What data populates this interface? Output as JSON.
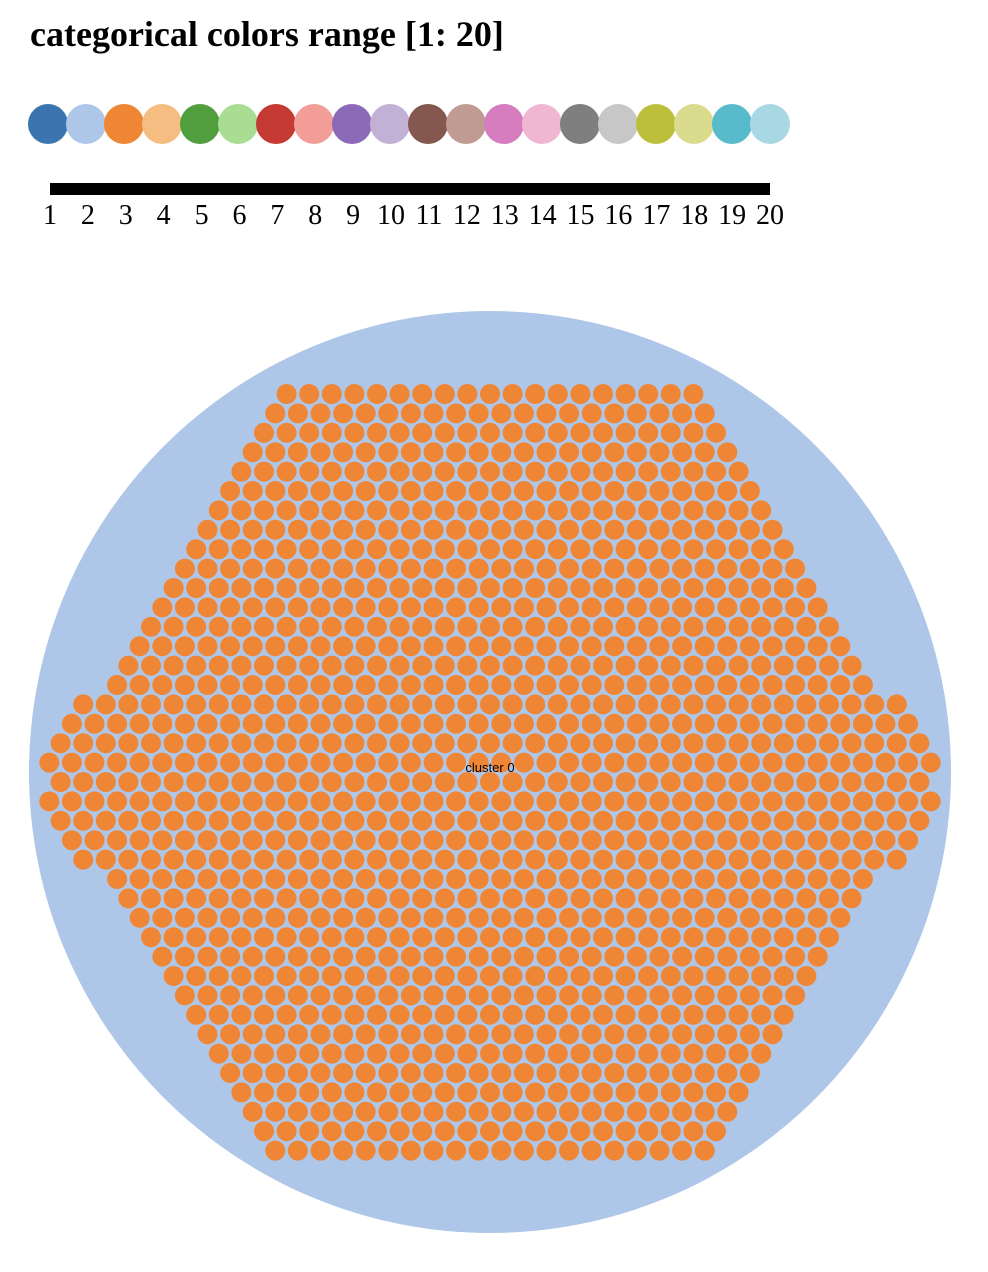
{
  "title": "categorical colors range [1: 20]",
  "chart_data": [
    {
      "type": "color-legend",
      "scale": "categorical",
      "domain": [
        1,
        20
      ],
      "categories": [
        "1",
        "2",
        "3",
        "4",
        "5",
        "6",
        "7",
        "8",
        "9",
        "10",
        "11",
        "12",
        "13",
        "14",
        "15",
        "16",
        "17",
        "18",
        "19",
        "20"
      ],
      "colors": [
        "#3b75af",
        "#aec7e8",
        "#ef8636",
        "#f5bd82",
        "#519e3e",
        "#a8dd93",
        "#c53a32",
        "#f29e96",
        "#8d6ab8",
        "#c3b0d5",
        "#84584e",
        "#c09b93",
        "#d57dbf",
        "#f0b7d2",
        "#7f7f7f",
        "#c7c7c7",
        "#bcbf3b",
        "#dbdb8e",
        "#58bbcc",
        "#a9d8e5"
      ]
    },
    {
      "type": "circle-packing",
      "root": {
        "label": "",
        "color": "#aec7e8"
      },
      "clusters": [
        {
          "label": "cluster 0",
          "color": "#ef8636",
          "leaf_color": "#ef8636"
        }
      ]
    }
  ]
}
